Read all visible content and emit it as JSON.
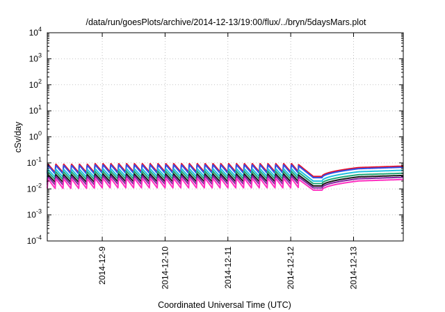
{
  "chart_data": {
    "type": "line",
    "title": "/data/run/goesPlots/archive/2014-12-13/19:00/flux/../bryn/5daysMars.plot",
    "xlabel": "Coordinated Universal Time (UTC)",
    "ylabel": "cSv/day",
    "y_scale": "log",
    "ylim": [
      0.0001,
      10000
    ],
    "xlim": [
      "2014-12-08T03:00",
      "2014-12-13T19:00"
    ],
    "y_ticks": [
      {
        "base": "10",
        "exp": "-4"
      },
      {
        "base": "10",
        "exp": "-3"
      },
      {
        "base": "10",
        "exp": "-2"
      },
      {
        "base": "10",
        "exp": "-1"
      },
      {
        "base": "10",
        "exp": "0"
      },
      {
        "base": "10",
        "exp": "1"
      },
      {
        "base": "10",
        "exp": "2"
      },
      {
        "base": "10",
        "exp": "3"
      },
      {
        "base": "10",
        "exp": "4"
      }
    ],
    "x_ticks": [
      "2014-12-9",
      "2014-12-10",
      "2014-12-11",
      "2014-12-12",
      "2014-12-13"
    ],
    "grid": true,
    "legend": "none",
    "spike_cycle_hours": 3,
    "series": [
      {
        "color": "#e8102a",
        "peak": 0.095,
        "trough": 0.045,
        "dip_min": 0.03,
        "late": 0.075
      },
      {
        "color": "#3050e8",
        "peak": 0.085,
        "trough": 0.04,
        "dip_min": 0.027,
        "late": 0.068
      },
      {
        "color": "#20c0e0",
        "peak": 0.06,
        "trough": 0.03,
        "dip_min": 0.02,
        "late": 0.052
      },
      {
        "color": "#20a878",
        "peak": 0.048,
        "trough": 0.024,
        "dip_min": 0.016,
        "late": 0.04
      },
      {
        "color": "#1a1a1a",
        "peak": 0.038,
        "trough": 0.019,
        "dip_min": 0.013,
        "late": 0.033
      },
      {
        "color": "#8020a0",
        "peak": 0.032,
        "trough": 0.015,
        "dip_min": 0.011,
        "late": 0.028
      },
      {
        "color": "#ff30c0",
        "peak": 0.026,
        "trough": 0.011,
        "dip_min": 0.009,
        "late": 0.023
      }
    ]
  }
}
